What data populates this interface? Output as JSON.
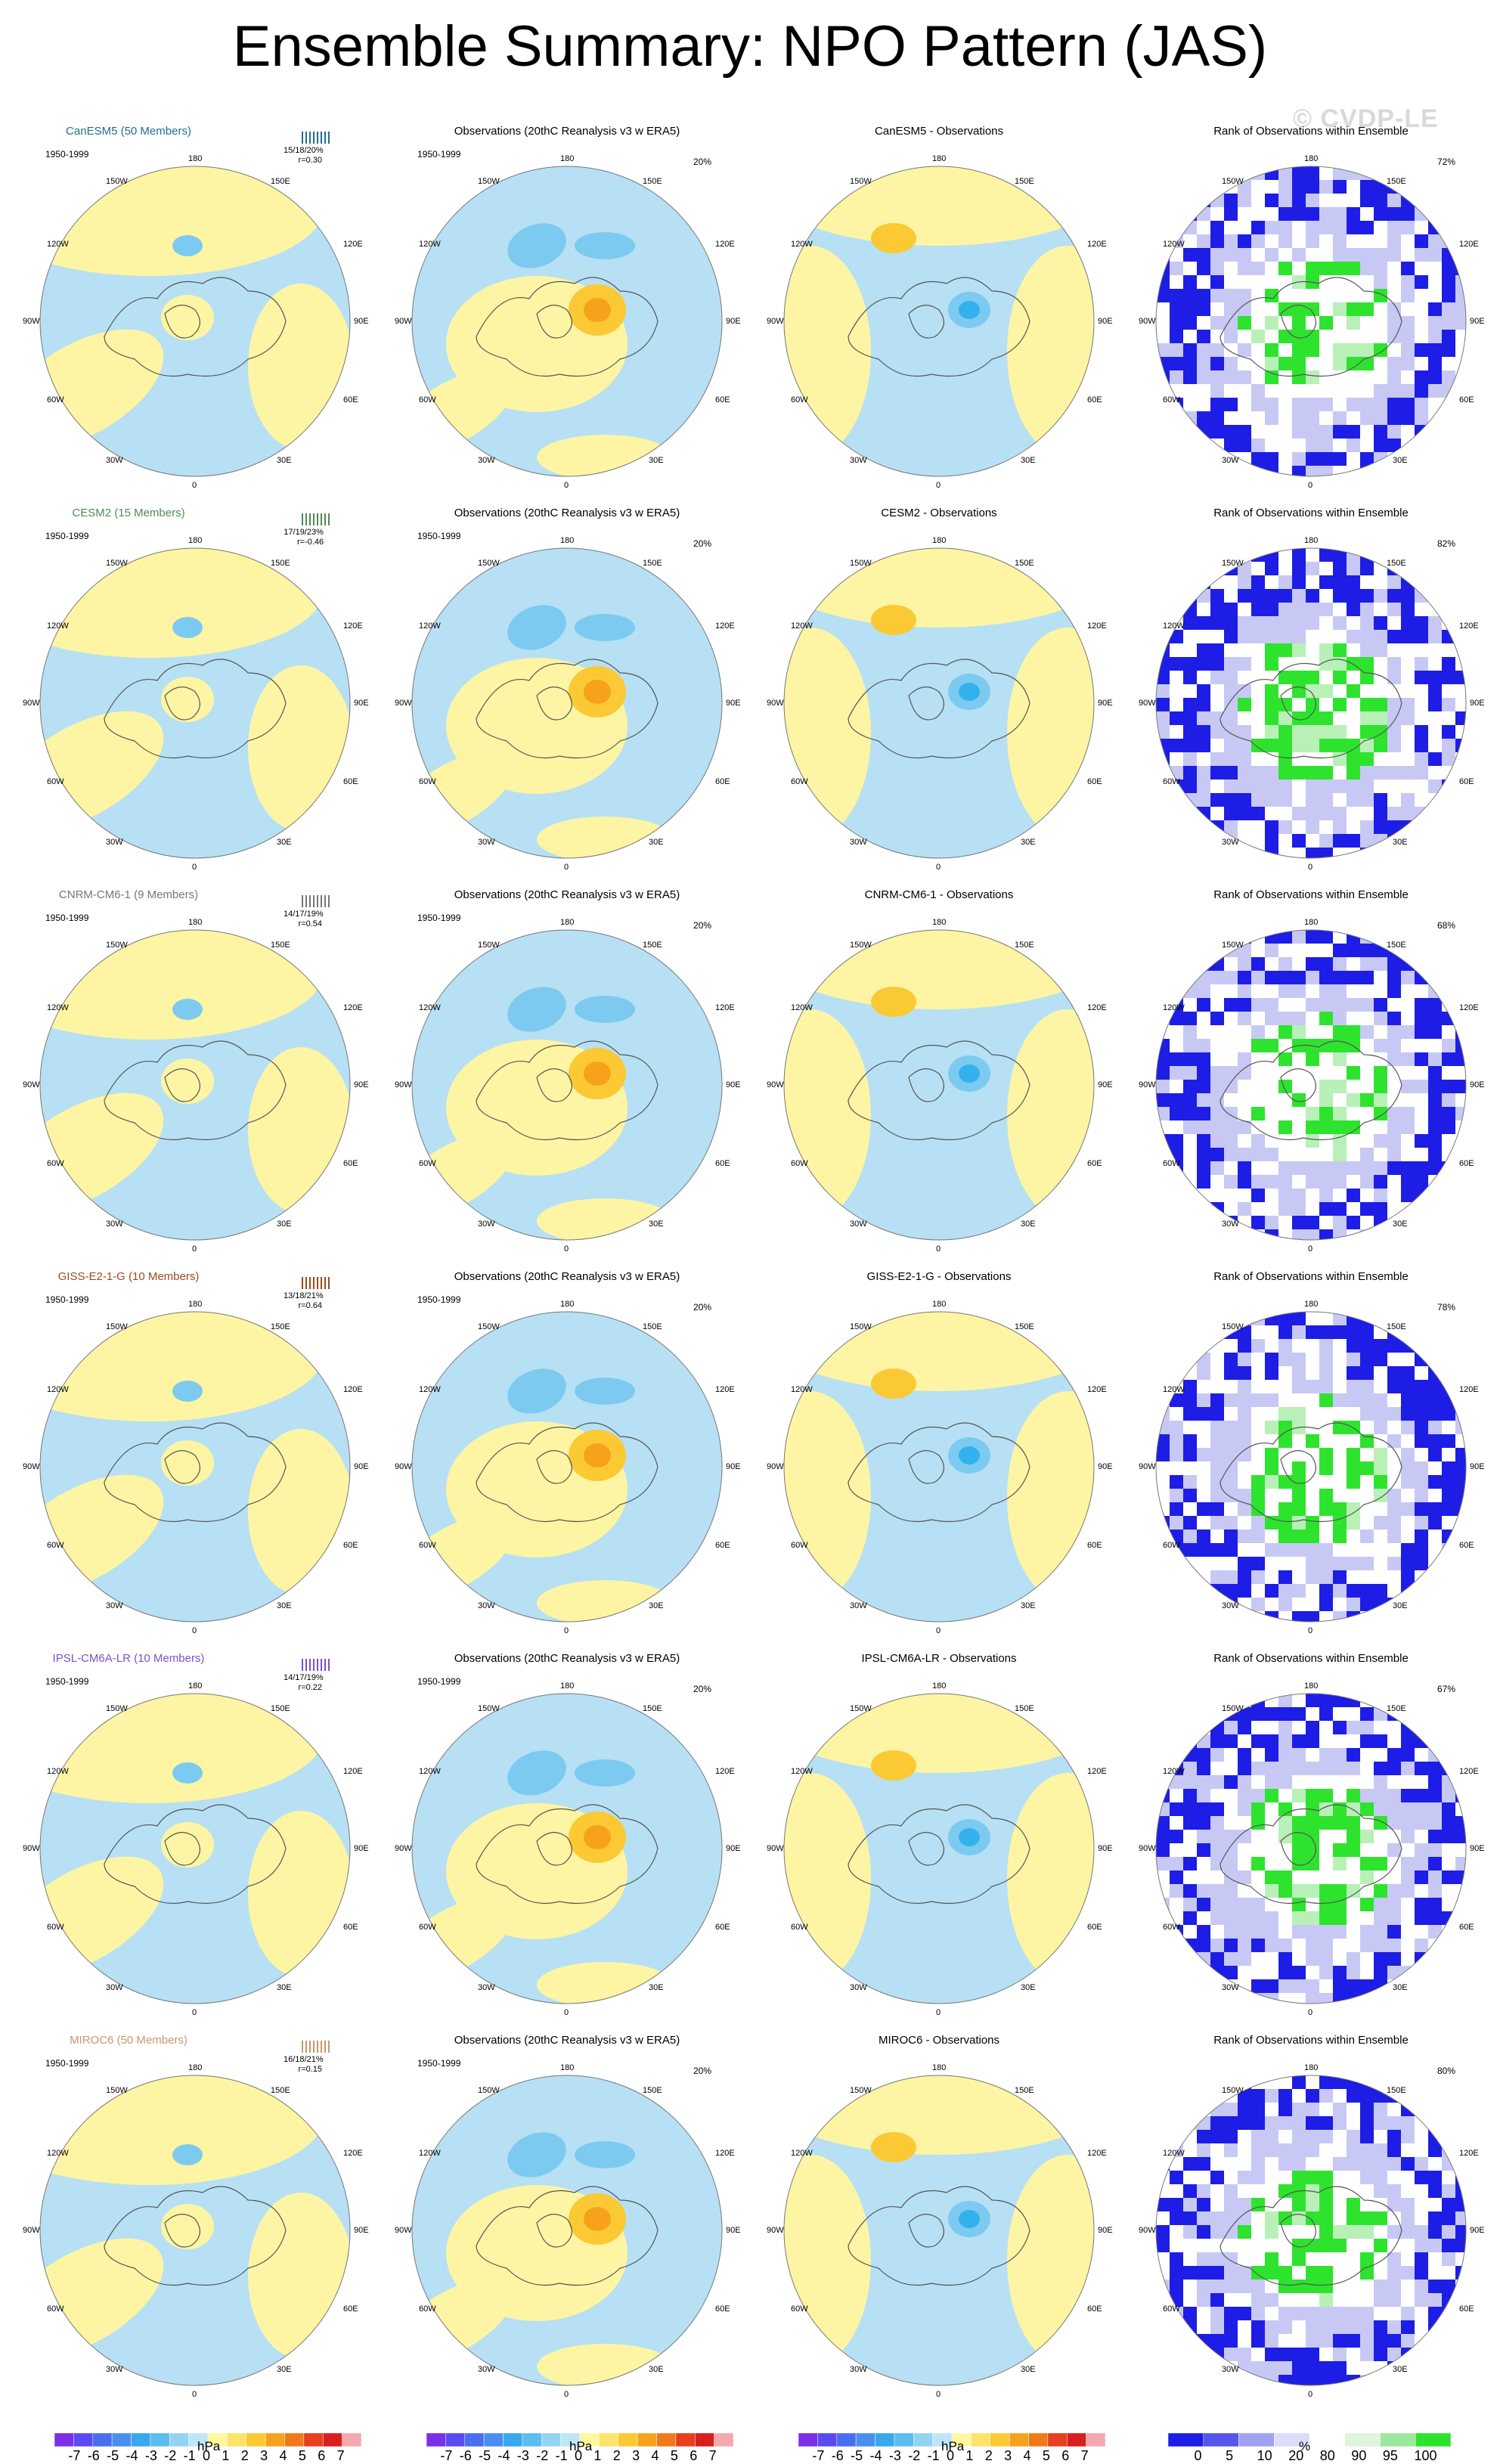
{
  "title": "Ensemble Summary: NPO Pattern (JAS)",
  "watermark": "© CVDP-LE",
  "colors": {
    "pos1": "#fdf5a3",
    "pos2": "#fbc934",
    "pos3": "#f7a21c",
    "neg1": "#b7e0f4",
    "neg2": "#7ccaf0",
    "neg3": "#33b1ec",
    "rank_low": "#1d1de6",
    "rank_mid": "#c7c9f4",
    "rank_high": "#2ee32e",
    "rank_highlight": "#b8f0b8"
  },
  "coord_labels": {
    "top": "180",
    "bottom": "0",
    "ul1": "150W",
    "ur1": "150E",
    "ul2": "120W",
    "ur2": "120E",
    "l": "90W",
    "r": "90E",
    "ll2": "60W",
    "lr2": "60E",
    "ll1": "30W",
    "lr1": "30E"
  },
  "rows": [
    {
      "model": "CanESM5 (50 Members)",
      "model_color": "#1f6e8e",
      "period": "1950-1999",
      "stats": "15/18/20%",
      "r": "r=0.30",
      "obs_title": "Observations (20thC Reanalysis v3 w ERA5)",
      "obs_pct": "20%",
      "diff_title": "CanESM5 - Observations",
      "rank_title": "Rank of Observations within Ensemble",
      "rank_pct": "72%"
    },
    {
      "model": "CESM2 (15 Members)",
      "model_color": "#4e8a56",
      "period": "1950-1999",
      "stats": "17/19/23%",
      "r": "r=-0.46",
      "obs_title": "Observations (20thC Reanalysis v3 w ERA5)",
      "obs_pct": "20%",
      "diff_title": "CESM2 - Observations",
      "rank_title": "Rank of Observations within Ensemble",
      "rank_pct": "82%"
    },
    {
      "model": "CNRM-CM6-1 (9 Members)",
      "model_color": "#777777",
      "period": "1950-1999",
      "stats": "14/17/19%",
      "r": "r=0.54",
      "obs_title": "Observations (20thC Reanalysis v3 w ERA5)",
      "obs_pct": "20%",
      "diff_title": "CNRM-CM6-1 - Observations",
      "rank_title": "Rank of Observations within Ensemble",
      "rank_pct": "68%"
    },
    {
      "model": "GISS-E2-1-G (10 Members)",
      "model_color": "#9c4b1c",
      "period": "1950-1999",
      "stats": "13/18/21%",
      "r": "r=0.64",
      "obs_title": "Observations (20thC Reanalysis v3 w ERA5)",
      "obs_pct": "20%",
      "diff_title": "GISS-E2-1-G - Observations",
      "rank_title": "Rank of Observations within Ensemble",
      "rank_pct": "78%"
    },
    {
      "model": "IPSL-CM6A-LR (10 Members)",
      "model_color": "#7b52c8",
      "period": "1950-1999",
      "stats": "14/17/19%",
      "r": "r=0.22",
      "obs_title": "Observations (20thC Reanalysis v3 w ERA5)",
      "obs_pct": "20%",
      "diff_title": "IPSL-CM6A-LR - Observations",
      "rank_title": "Rank of Observations within Ensemble",
      "rank_pct": "67%"
    },
    {
      "model": "MIROC6 (50 Members)",
      "model_color": "#c9976a",
      "period": "1950-1999",
      "stats": "16/18/21%",
      "r": "r=0.15",
      "obs_title": "Observations (20thC Reanalysis v3 w ERA5)",
      "obs_pct": "20%",
      "diff_title": "MIROC6 - Observations",
      "rank_title": "Rank of Observations within Ensemble",
      "rank_pct": "80%"
    }
  ],
  "colorbar_hpa": {
    "labels": [
      "-7",
      "-6",
      "-5",
      "-4",
      "-3",
      "-2",
      "-1",
      "0",
      "1",
      "2",
      "3",
      "4",
      "5",
      "6",
      "7"
    ],
    "colors": [
      "#7b2fe6",
      "#5a4af0",
      "#4a6ef0",
      "#4a8ef0",
      "#35a8ee",
      "#5cbdef",
      "#93d4f2",
      "#bfe6f6",
      "#fff7a0",
      "#fde36a",
      "#fbc934",
      "#f7a21c",
      "#f07a1a",
      "#e6401e",
      "#d81e1e",
      "#f4a9ae"
    ],
    "unit": "hPa"
  },
  "colorbar_rank": {
    "labels": [
      "0",
      "5",
      "10",
      "20",
      "80",
      "90",
      "95",
      "100"
    ],
    "colors": [
      "#1d1de6",
      "#5656ea",
      "#9fa2f0",
      "#dadcf8",
      "#ffffff",
      "#dcf5dc",
      "#9ce89c",
      "#2ee32e"
    ],
    "unit": "%"
  }
}
